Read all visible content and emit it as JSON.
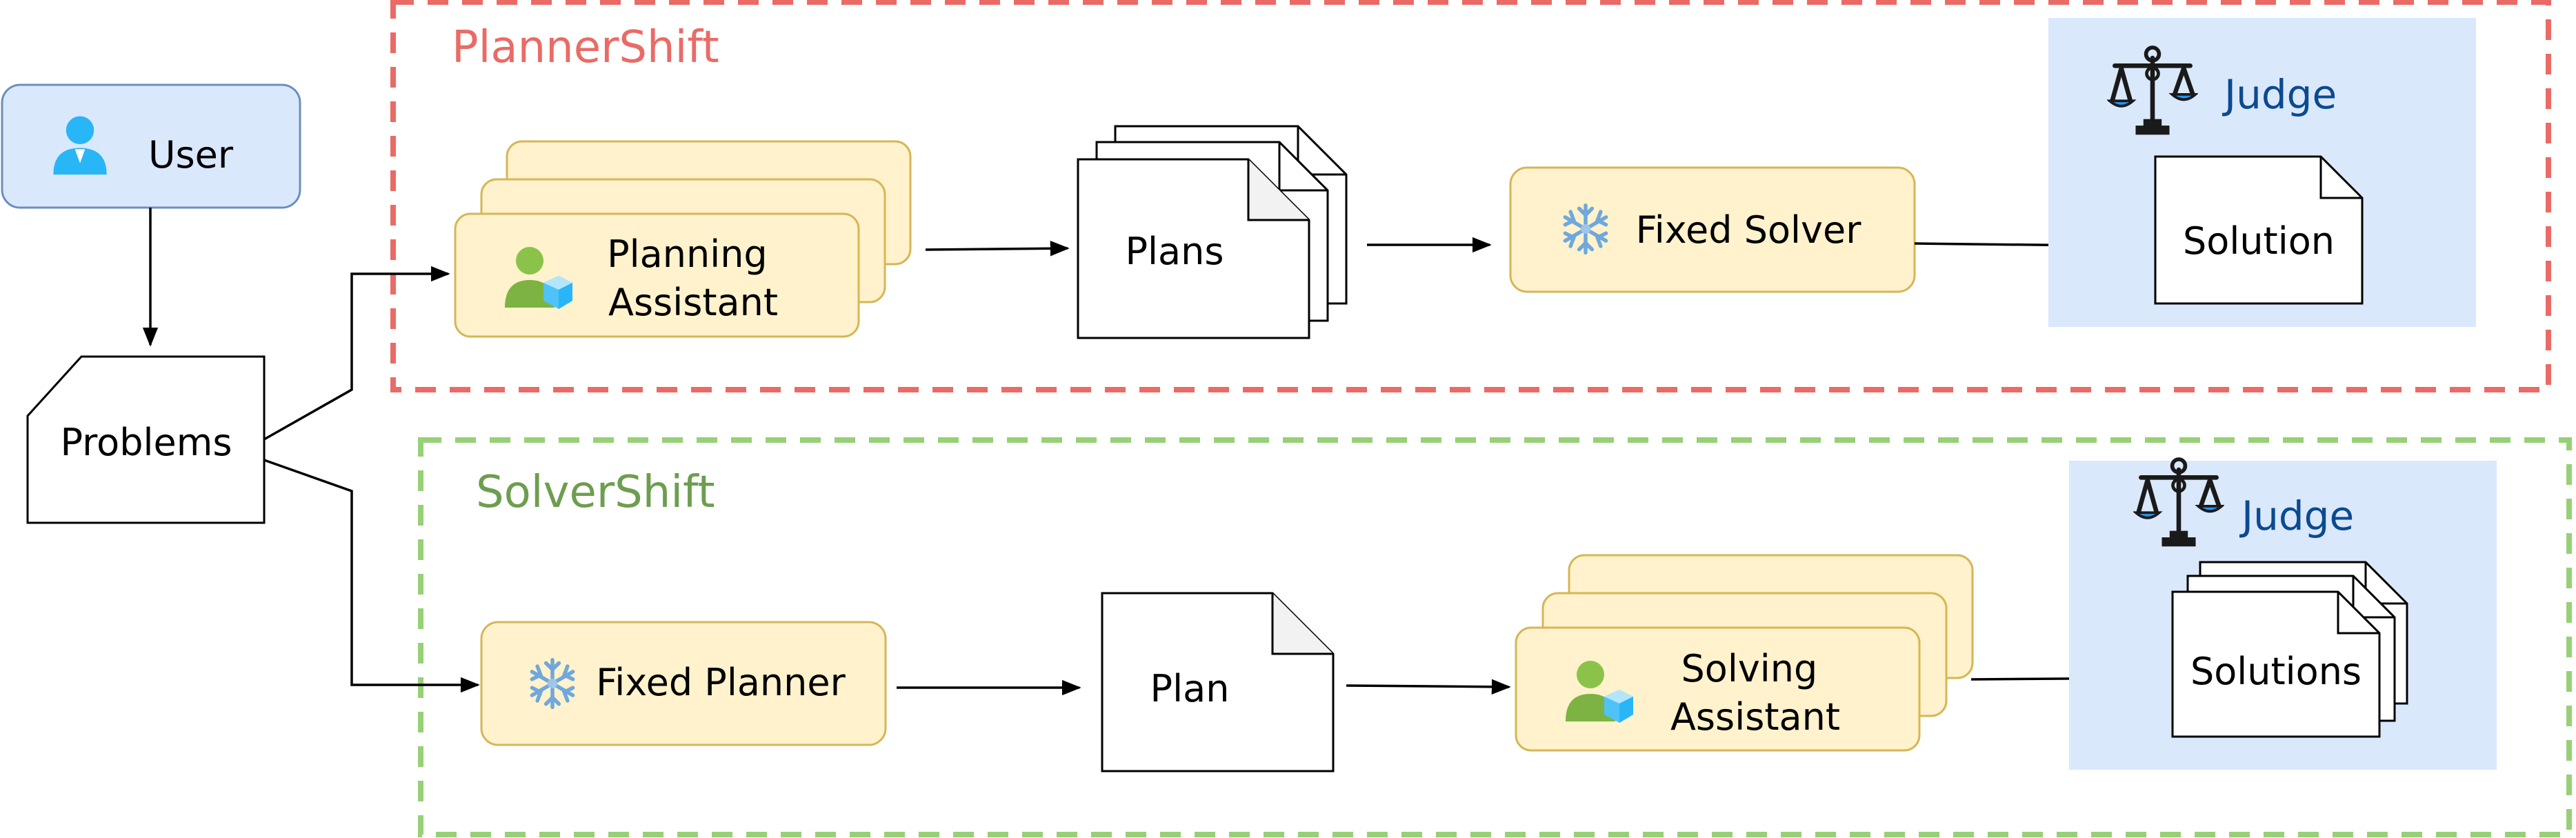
{
  "user": {
    "label": "User"
  },
  "problems": {
    "label": "Problems"
  },
  "planner_shift": {
    "title": "PlannerShift",
    "title_color": "#ea6b66",
    "border_color": "#ea6b66",
    "planning_assistant": [
      "Planning",
      "Assistant"
    ],
    "plans": "Plans",
    "fixed_solver": "Fixed Solver",
    "judge": "Judge",
    "solution": "Solution"
  },
  "solver_shift": {
    "title": "SolverShift",
    "title_color": "#6d9e4f",
    "border_color": "#97d077",
    "fixed_planner": "Fixed Planner",
    "plan": "Plan",
    "solving_assistant": [
      "Solving",
      "Assistant"
    ],
    "judge": "Judge",
    "solutions": "Solutions"
  },
  "colors": {
    "user_fill": "#dae8fc",
    "user_stroke": "#6c8ebf",
    "assistant_fill": "#fff2cc",
    "assistant_stroke": "#d6b656",
    "judge_fill": "#dae8fc",
    "judge_text": "#0b4a8f"
  },
  "icons": {
    "user": "user-icon",
    "assistant": "user-with-cube-icon",
    "fixed": "snowflake-icon",
    "judge": "scales-icon"
  }
}
